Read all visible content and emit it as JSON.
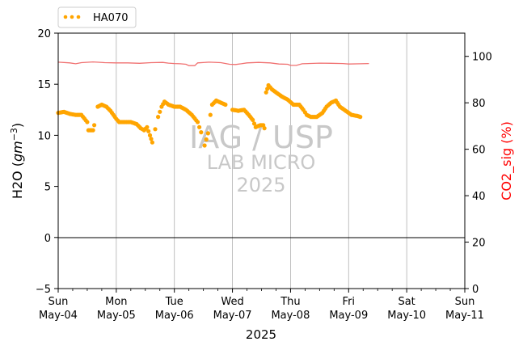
{
  "chart_data": {
    "type": "scatter",
    "xlabel": "2025",
    "ylabel_left": "H2O (gm⁻³)",
    "ylabel_right": "CO2_sig (%)",
    "ylim_left": [
      -5,
      20
    ],
    "ylim_right": [
      0,
      110
    ],
    "yticks_left": [
      "20",
      "15",
      "10",
      "5",
      "0",
      "−5"
    ],
    "yticks_right": [
      "100",
      "80",
      "60",
      "40",
      "20",
      "0"
    ],
    "xlim_days": [
      0,
      7
    ],
    "x_ticks": [
      {
        "day": "Sun",
        "date": "May-04"
      },
      {
        "day": "Mon",
        "date": "May-05"
      },
      {
        "day": "Tue",
        "date": "May-06"
      },
      {
        "day": "Wed",
        "date": "May-07"
      },
      {
        "day": "Thu",
        "date": "May-08"
      },
      {
        "day": "Fri",
        "date": "May-09"
      },
      {
        "day": "Sat",
        "date": "May-10"
      },
      {
        "day": "Sun",
        "date": "May-11"
      }
    ],
    "grid": "vertical at day ticks",
    "zero_line": true,
    "legend": {
      "position": "top-left",
      "entries": [
        "HA070"
      ]
    },
    "watermark": {
      "line1": "IAG / USP",
      "line2": "LAB MICRO",
      "line3": "2025"
    },
    "series": [
      {
        "name": "HA070",
        "axis": "left",
        "color": "#FFA500",
        "style": "dots",
        "points": [
          [
            0.0,
            12.2
          ],
          [
            0.1,
            12.3
          ],
          [
            0.2,
            12.1
          ],
          [
            0.3,
            12.0
          ],
          [
            0.4,
            12.0
          ],
          [
            0.5,
            11.3
          ],
          [
            0.52,
            10.5
          ],
          [
            0.6,
            10.5
          ],
          [
            0.62,
            11.0
          ],
          [
            0.68,
            12.8
          ],
          [
            0.75,
            13.0
          ],
          [
            0.83,
            12.8
          ],
          [
            0.9,
            12.4
          ],
          [
            0.95,
            12.0
          ],
          [
            1.0,
            11.6
          ],
          [
            1.05,
            11.3
          ],
          [
            1.15,
            11.3
          ],
          [
            1.25,
            11.3
          ],
          [
            1.35,
            11.1
          ],
          [
            1.42,
            10.7
          ],
          [
            1.48,
            10.5
          ],
          [
            1.53,
            10.8
          ],
          [
            1.58,
            10.0
          ],
          [
            1.62,
            9.3
          ],
          [
            1.67,
            10.6
          ],
          [
            1.72,
            11.8
          ],
          [
            1.78,
            12.8
          ],
          [
            1.83,
            13.3
          ],
          [
            1.9,
            13.0
          ],
          [
            2.0,
            12.8
          ],
          [
            2.1,
            12.8
          ],
          [
            2.2,
            12.5
          ],
          [
            2.3,
            12.0
          ],
          [
            2.4,
            11.3
          ],
          [
            2.46,
            10.3
          ],
          [
            2.52,
            9.0
          ],
          [
            2.58,
            10.2
          ],
          [
            2.62,
            12.0
          ],
          [
            2.65,
            13.0
          ],
          [
            2.72,
            13.4
          ],
          [
            2.8,
            13.2
          ],
          [
            2.88,
            13.0
          ],
          [
            3.0,
            12.5
          ],
          [
            3.1,
            12.4
          ],
          [
            3.2,
            12.5
          ],
          [
            3.28,
            12.0
          ],
          [
            3.35,
            11.5
          ],
          [
            3.4,
            10.8
          ],
          [
            3.48,
            11.0
          ],
          [
            3.53,
            11.0
          ],
          [
            3.55,
            10.7
          ],
          [
            3.58,
            14.2
          ],
          [
            3.62,
            14.9
          ],
          [
            3.68,
            14.5
          ],
          [
            3.75,
            14.2
          ],
          [
            3.85,
            13.8
          ],
          [
            3.95,
            13.5
          ],
          [
            4.05,
            13.0
          ],
          [
            4.15,
            13.0
          ],
          [
            4.22,
            12.5
          ],
          [
            4.28,
            12.0
          ],
          [
            4.35,
            11.8
          ],
          [
            4.45,
            11.8
          ],
          [
            4.55,
            12.2
          ],
          [
            4.62,
            12.8
          ],
          [
            4.7,
            13.2
          ],
          [
            4.78,
            13.4
          ],
          [
            4.85,
            12.8
          ],
          [
            4.95,
            12.4
          ],
          [
            5.05,
            12.0
          ],
          [
            5.15,
            11.9
          ],
          [
            5.2,
            11.8
          ]
        ]
      },
      {
        "name": "CO2_sig",
        "axis": "right",
        "color": "#F07070",
        "style": "line",
        "points": [
          [
            0.0,
            97.5
          ],
          [
            0.2,
            97.2
          ],
          [
            0.3,
            96.8
          ],
          [
            0.4,
            97.3
          ],
          [
            0.6,
            97.6
          ],
          [
            0.8,
            97.3
          ],
          [
            1.0,
            97.2
          ],
          [
            1.2,
            97.2
          ],
          [
            1.4,
            97.0
          ],
          [
            1.6,
            97.3
          ],
          [
            1.8,
            97.4
          ],
          [
            1.9,
            97.1
          ],
          [
            2.0,
            96.9
          ],
          [
            2.1,
            96.8
          ],
          [
            2.2,
            96.6
          ],
          [
            2.25,
            96.0
          ],
          [
            2.35,
            96.0
          ],
          [
            2.4,
            97.2
          ],
          [
            2.6,
            97.5
          ],
          [
            2.8,
            97.3
          ],
          [
            2.95,
            96.6
          ],
          [
            3.05,
            96.5
          ],
          [
            3.15,
            96.8
          ],
          [
            3.25,
            97.2
          ],
          [
            3.45,
            97.4
          ],
          [
            3.65,
            97.2
          ],
          [
            3.8,
            96.7
          ],
          [
            3.95,
            96.6
          ],
          [
            4.0,
            96.1
          ],
          [
            4.1,
            96.1
          ],
          [
            4.2,
            96.8
          ],
          [
            4.5,
            97.1
          ],
          [
            4.7,
            97.0
          ],
          [
            4.9,
            96.9
          ],
          [
            5.0,
            96.7
          ],
          [
            5.2,
            96.8
          ],
          [
            5.35,
            96.9
          ]
        ]
      }
    ]
  }
}
